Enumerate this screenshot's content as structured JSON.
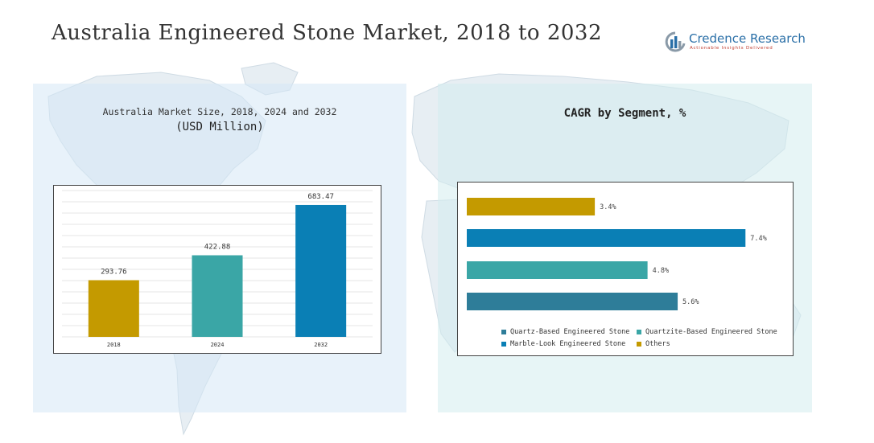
{
  "title": "Australia Engineered Stone Market, 2018 to 2032",
  "brand": {
    "name": "Credence Research",
    "tagline": "Actionable Insights Delivered",
    "colors": {
      "blue": "#2a6fa7",
      "grey": "#8a9aa8",
      "red": "#c0392b"
    }
  },
  "left_panel": {
    "subtitle": "Australia Market Size, 2018, 2024 and 2032",
    "unit": "(USD Million)"
  },
  "right_panel": {
    "title": "CAGR by Segment, %"
  },
  "chart_data": [
    {
      "type": "bar",
      "categories": [
        "2018",
        "2024",
        "2032"
      ],
      "values": [
        293.76,
        422.88,
        683.47
      ],
      "value_labels": [
        "293.76",
        "422.88",
        "683.47"
      ],
      "colors": [
        "#c49a00",
        "#3aa6a6",
        "#0a7fb5"
      ],
      "ylim": [
        0,
        750
      ],
      "grid": true
    },
    {
      "type": "bar",
      "orientation": "horizontal",
      "categories": [
        "Others",
        "Marble-Look Engineered Stone",
        "Quartzite-Based Engineered Stone",
        "Quartz-Based Engineered Stone"
      ],
      "values": [
        3.4,
        7.4,
        4.8,
        5.6
      ],
      "value_labels": [
        "3.4%",
        "7.4%",
        "4.8%",
        "5.6%"
      ],
      "colors": [
        "#c49a00",
        "#0a7fb5",
        "#3aa6a6",
        "#2e7d99"
      ],
      "xlim": [
        0,
        7.8
      ],
      "legend": {
        "placement": "bottom",
        "items": [
          {
            "label": "Quartz-Based Engineered Stone",
            "color": "#2e7d99"
          },
          {
            "label": "Quartzite-Based Engineered Stone",
            "color": "#3aa6a6"
          },
          {
            "label": "Marble-Look Engineered Stone",
            "color": "#0a7fb5"
          },
          {
            "label": "Others",
            "color": "#c49a00"
          }
        ]
      }
    }
  ]
}
